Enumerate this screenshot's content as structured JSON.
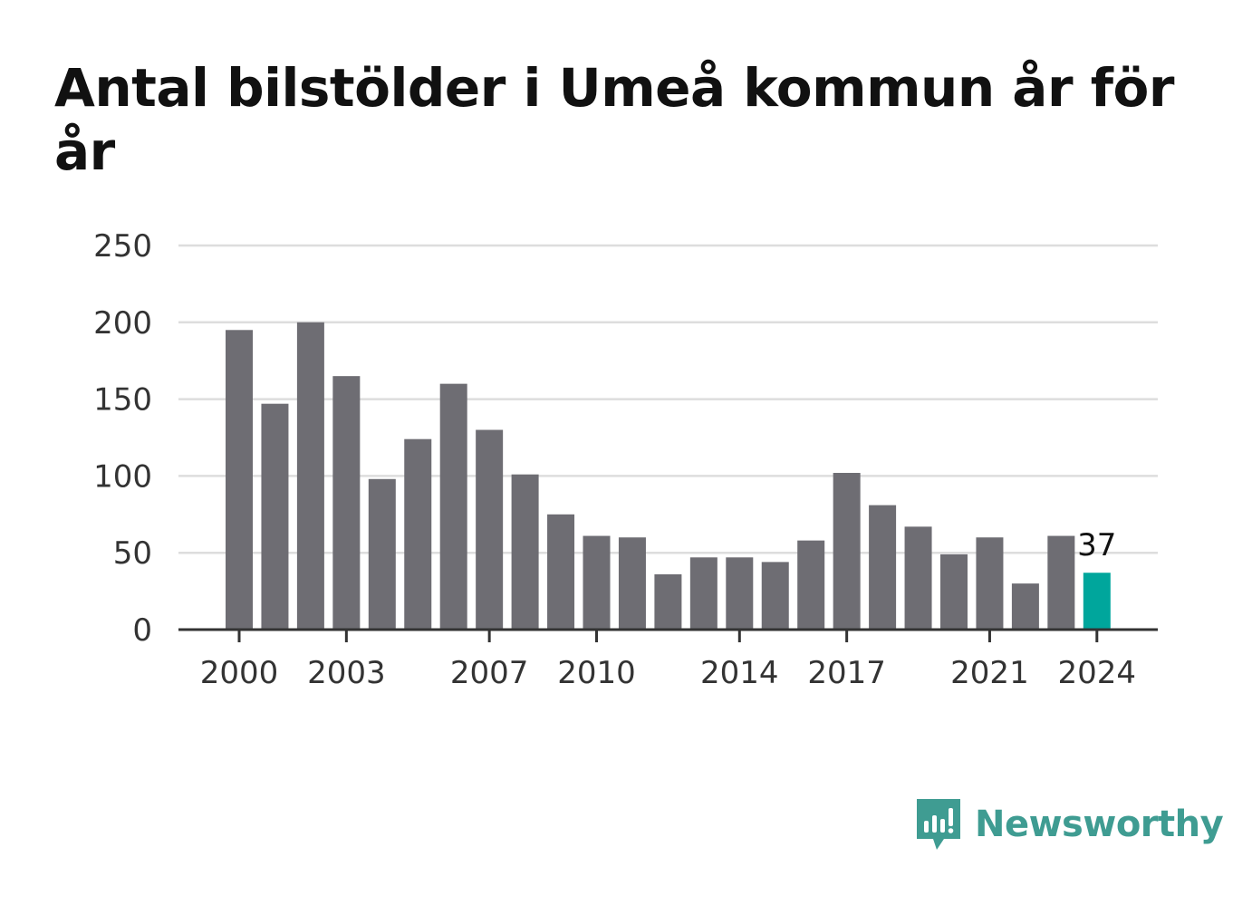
{
  "chart_data": {
    "type": "bar",
    "title": "Antal bilstölder i Umeå kommun år för år",
    "x": [
      2000,
      2001,
      2002,
      2003,
      2004,
      2005,
      2006,
      2007,
      2008,
      2009,
      2010,
      2011,
      2012,
      2013,
      2014,
      2015,
      2016,
      2017,
      2018,
      2019,
      2020,
      2021,
      2022,
      2023,
      2024
    ],
    "values": [
      195,
      147,
      200,
      165,
      98,
      124,
      160,
      130,
      101,
      75,
      61,
      60,
      36,
      47,
      47,
      44,
      58,
      102,
      81,
      67,
      49,
      60,
      30,
      61,
      37
    ],
    "x_tick_labels": [
      "2000",
      "2003",
      "2007",
      "2010",
      "2014",
      "2017",
      "2021",
      "2024"
    ],
    "y_ticks": [
      0,
      50,
      100,
      150,
      200,
      250
    ],
    "ylim": [
      0,
      250
    ],
    "xlabel": "",
    "ylabel": "",
    "grid": true,
    "highlight": {
      "year": 2024,
      "label": "37"
    },
    "colors": {
      "bar": "#6e6d73",
      "highlight": "#00a69c",
      "grid": "#dddddd",
      "axis": "#333333"
    }
  },
  "brand": {
    "name": "Newsworthy",
    "icon": "newsworthy-logo-icon",
    "color": "#3f9c92"
  }
}
